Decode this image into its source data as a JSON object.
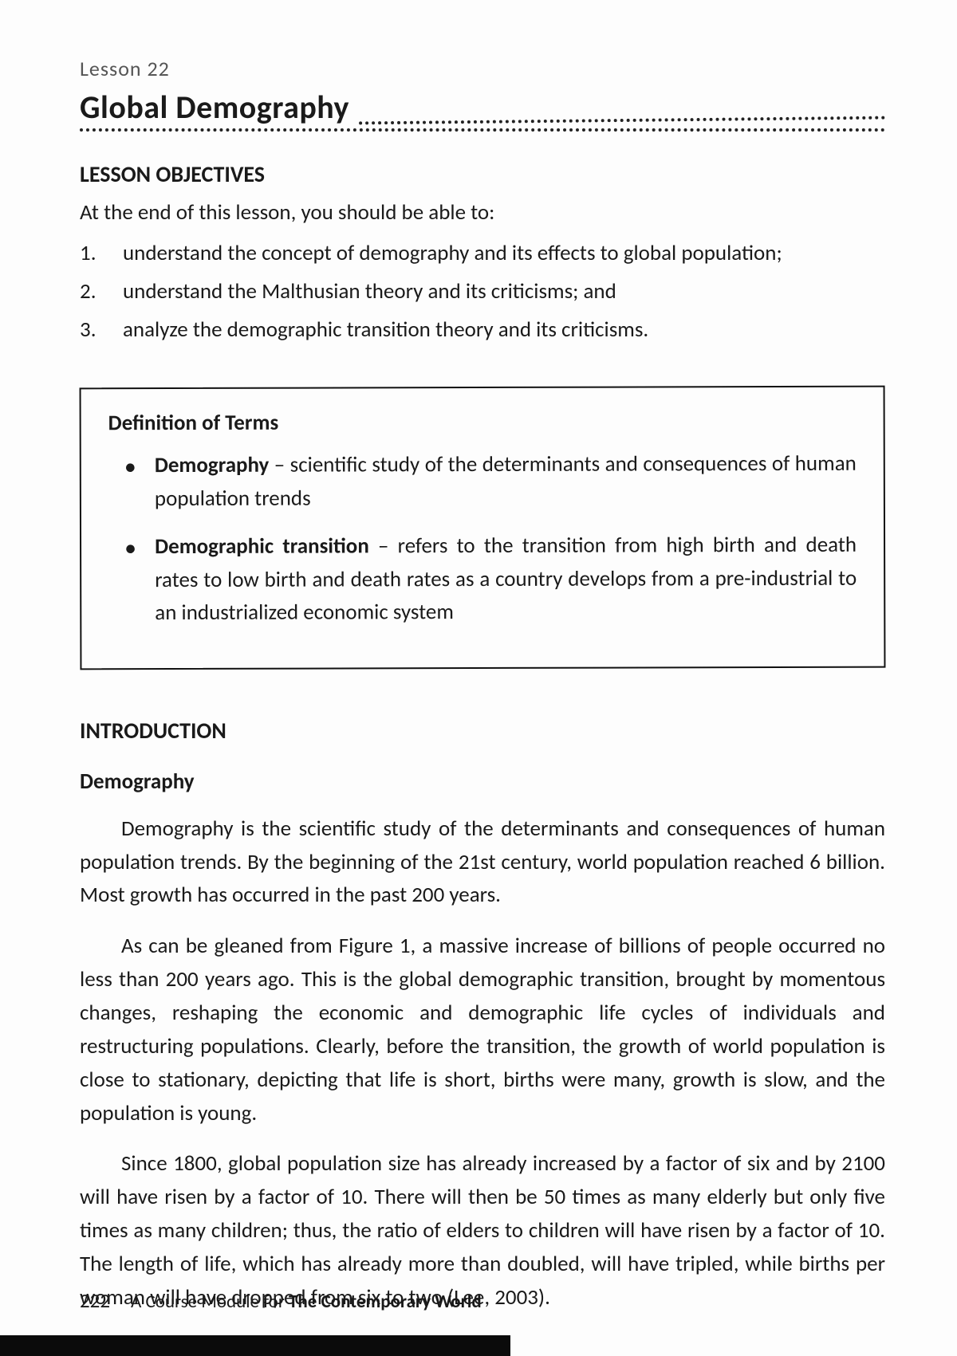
{
  "lesson_number": "Lesson 22",
  "title": "Global Demography",
  "objectives": {
    "heading": "LESSON OBJECTIVES",
    "intro": "At the end of this lesson, you should be able to:",
    "items": [
      "understand the concept of demography and its effects to global population;",
      "understand the Malthusian theory and its criticisms; and",
      "analyze the demographic transition theory and its criticisms."
    ]
  },
  "definitions": {
    "heading": "Definition of Terms",
    "terms": [
      {
        "name": "Demography",
        "def": " – scientific study of the determinants and consequences of human population trends"
      },
      {
        "name": "Demographic transition",
        "def": " – refers to the transition from high birth and death rates to low birth and death rates as a country develops from a pre-industrial to an industrialized economic system"
      }
    ]
  },
  "intro_heading": "INTRODUCTION",
  "sub_heading": "Demography",
  "paragraphs": [
    "Demography is the scientific study of the determinants and consequences of human population trends. By the beginning of the 21st century, world population reached 6 billion. Most growth has occurred in the past 200 years.",
    "As can be gleaned from Figure 1, a massive increase of billions of people occurred no less than 200 years ago. This is the global demographic transition, brought by momentous changes, reshaping the economic and demographic life cycles of individuals and restructuring populations. Clearly, before the transition, the growth of world population is close to stationary, depicting that life is short, births were many, growth is slow, and the population is young.",
    "Since 1800, global population size has already increased by a factor of six and by 2100 will have risen by a factor of 10. There will then be 50 times as many elderly but only five times as many children; thus, the ratio of elders to children will have risen by a factor of 10. The length of life, which has already more than doubled, will have tripled, while births per woman will have dropped from six to two (Lee, 2003)."
  ],
  "footer": {
    "page": "222",
    "text_a": "A Course Module for ",
    "text_b": "The Contemporary World"
  }
}
